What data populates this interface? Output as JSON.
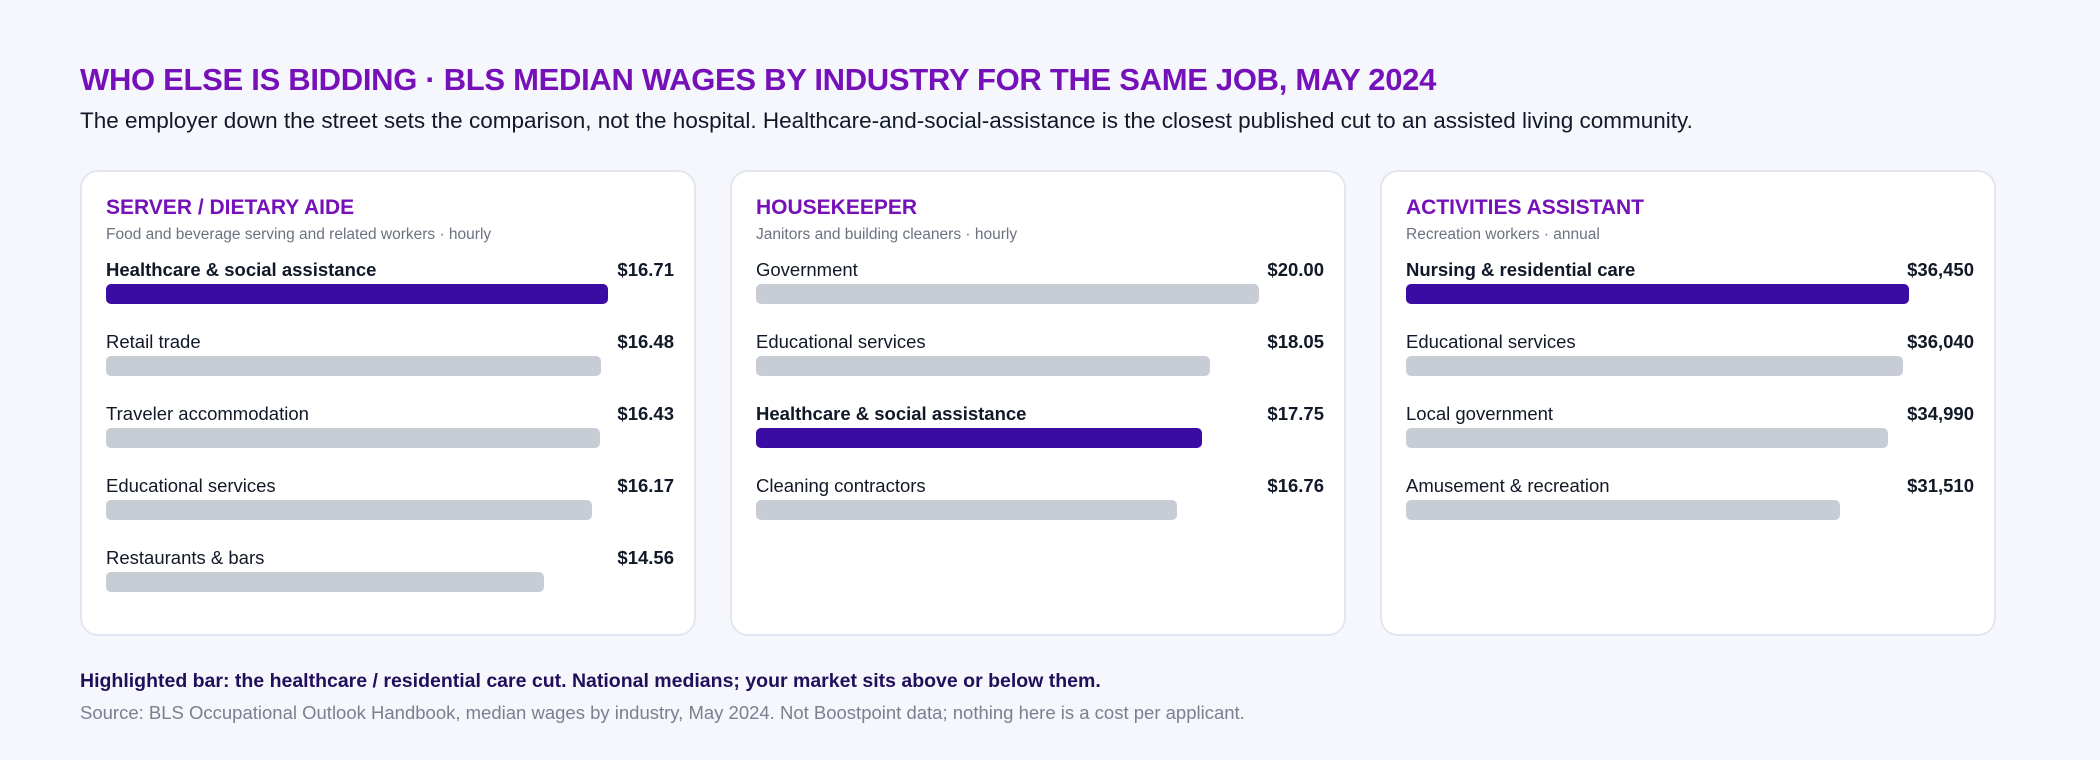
{
  "title": "WHO ELSE IS BIDDING · BLS MEDIAN WAGES BY INDUSTRY FOR THE SAME JOB, MAY 2024",
  "subtitle": "The employer down the street sets the comparison, not the hospital. Healthcare-and-social-assistance is the closest published cut to an assisted living community.",
  "colors": {
    "title": "#7610b8",
    "highlight_bar": "#3b0ca3",
    "bar": "#c8ccd5",
    "background": "#f5f7fd"
  },
  "chart_data": [
    {
      "type": "bar",
      "orientation": "horizontal",
      "title": "SERVER / DIETARY AIDE",
      "subtitle": "Food and beverage serving and related workers · hourly",
      "categories": [
        "Healthcare & social assistance",
        "Retail trade",
        "Traveler accommodation",
        "Educational services",
        "Restaurants & bars"
      ],
      "values": [
        16.71,
        16.48,
        16.43,
        16.17,
        14.56
      ],
      "labels": [
        "$16.71",
        "$16.48",
        "$16.43",
        "$16.17",
        "$14.56"
      ],
      "highlight": [
        true,
        false,
        false,
        false,
        false
      ],
      "xlim": [
        0,
        18.9
      ]
    },
    {
      "type": "bar",
      "orientation": "horizontal",
      "title": "HOUSEKEEPER",
      "subtitle": "Janitors and building cleaners · hourly",
      "categories": [
        "Government",
        "Educational services",
        "Healthcare & social assistance",
        "Cleaning contractors"
      ],
      "values": [
        20.0,
        18.05,
        17.75,
        16.76
      ],
      "labels": [
        "$20.00",
        "$18.05",
        "$17.75",
        "$16.76"
      ],
      "highlight": [
        false,
        false,
        true,
        false
      ],
      "xlim": [
        0,
        22.6
      ]
    },
    {
      "type": "bar",
      "orientation": "horizontal",
      "title": "ACTIVITIES ASSISTANT",
      "subtitle": "Recreation workers · annual",
      "categories": [
        "Nursing & residential care",
        "Educational services",
        "Local government",
        "Amusement & recreation"
      ],
      "values": [
        36450,
        36040,
        34990,
        31510
      ],
      "labels": [
        "$36,450",
        "$36,040",
        "$34,990",
        "$31,510"
      ],
      "highlight": [
        true,
        false,
        false,
        false
      ],
      "xlim": [
        0,
        41200
      ]
    }
  ],
  "footer": {
    "note": "Highlighted bar: the healthcare / residential care cut. National medians; your market sits above or below them.",
    "source": "Source: BLS Occupational Outlook Handbook, median wages by industry, May 2024. Not Boostpoint data; nothing here is a cost per applicant."
  }
}
